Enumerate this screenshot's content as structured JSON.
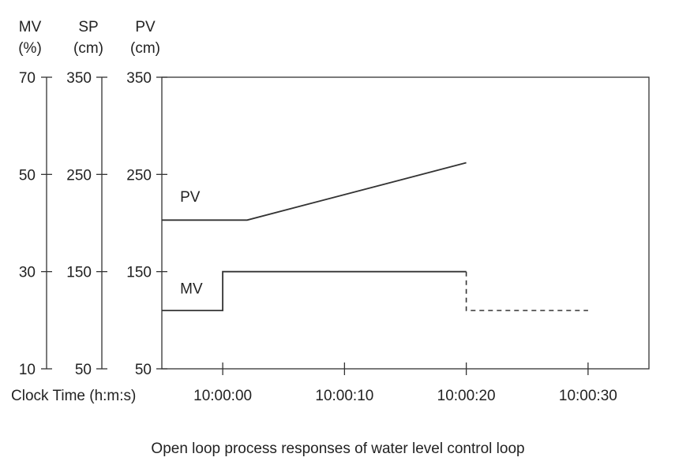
{
  "chart_data": {
    "type": "line",
    "caption": "Open loop process responses of water level control loop",
    "xlabel": "Clock Time (h:m:s)",
    "x_ticks": [
      "10:00:00",
      "10:00:10",
      "10:00:20",
      "10:00:30"
    ],
    "x_tick_seconds": [
      0,
      10,
      20,
      30
    ],
    "xlim_seconds": [
      -5,
      35
    ],
    "grid": false,
    "axes": {
      "mv": {
        "label_top": "MV",
        "label_unit": "(%)",
        "range": [
          10,
          70
        ],
        "ticks": [
          10,
          30,
          50,
          70
        ]
      },
      "sp": {
        "label_top": "SP",
        "label_unit": "(cm)",
        "range": [
          50,
          350
        ],
        "ticks": [
          50,
          150,
          250,
          350
        ]
      },
      "pv": {
        "label_top": "PV",
        "label_unit": "(cm)",
        "range": [
          50,
          350
        ],
        "ticks": [
          50,
          150,
          250,
          350
        ]
      }
    },
    "series": [
      {
        "name": "PV",
        "axis": "pv",
        "points": [
          [
            -5,
            203
          ],
          [
            2,
            203
          ],
          [
            20,
            262
          ]
        ],
        "dashed_points": []
      },
      {
        "name": "MV",
        "axis": "mv",
        "points": [
          [
            -5,
            22
          ],
          [
            0,
            22
          ],
          [
            0,
            30
          ],
          [
            20,
            30
          ]
        ],
        "dashed_points": [
          [
            20,
            30
          ],
          [
            20,
            22
          ],
          [
            30,
            22
          ]
        ]
      }
    ]
  }
}
